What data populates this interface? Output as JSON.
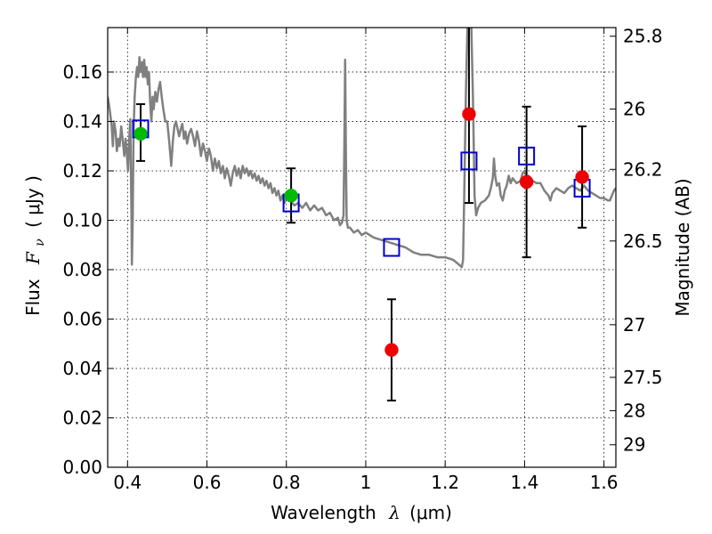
{
  "chart_data": {
    "type": "scatter",
    "title": "",
    "xlabel": "Wavelength",
    "xlabel_symbol": "λ",
    "xlabel_unit": "(μm)",
    "ylabel": "Flux",
    "ylabel_symbol": "F",
    "ylabel_subscript": "ν",
    "ylabel_unit": "( μJy )",
    "y2label": "Magnitude (AB)",
    "xlim": [
      0.35,
      1.63
    ],
    "ylim": [
      0.0,
      0.178
    ],
    "grid": true,
    "legend": "none",
    "x_ticks": [
      {
        "value": 0.4,
        "label": "0.4"
      },
      {
        "value": 0.6,
        "label": "0.6"
      },
      {
        "value": 0.8,
        "label": "0.8"
      },
      {
        "value": 1.0,
        "label": "1"
      },
      {
        "value": 1.2,
        "label": "1.2"
      },
      {
        "value": 1.4,
        "label": "1.4"
      },
      {
        "value": 1.6,
        "label": "1.6"
      }
    ],
    "y_ticks": [
      {
        "value": 0.0,
        "label": "0.00"
      },
      {
        "value": 0.02,
        "label": "0.02"
      },
      {
        "value": 0.04,
        "label": "0.04"
      },
      {
        "value": 0.06,
        "label": "0.06"
      },
      {
        "value": 0.08,
        "label": "0.08"
      },
      {
        "value": 0.1,
        "label": "0.10"
      },
      {
        "value": 0.12,
        "label": "0.12"
      },
      {
        "value": 0.14,
        "label": "0.14"
      },
      {
        "value": 0.16,
        "label": "0.16"
      }
    ],
    "y2_ticks": [
      {
        "label": "25.8",
        "flux": 0.1745
      },
      {
        "label": "26",
        "flux": 0.145
      },
      {
        "label": "26.2",
        "flux": 0.1206
      },
      {
        "label": "26.5",
        "flux": 0.0916
      },
      {
        "label": "27",
        "flux": 0.0577
      },
      {
        "label": "27.5",
        "flux": 0.0364
      },
      {
        "label": "28",
        "flux": 0.0229
      },
      {
        "label": "29",
        "flux": 0.0091
      }
    ],
    "series": [
      {
        "kind": "line",
        "color": "#808080",
        "points": [
          [
            0.35,
            0.15
          ],
          [
            0.355,
            0.145
          ],
          [
            0.36,
            0.138
          ],
          [
            0.363,
            0.13
          ],
          [
            0.366,
            0.14
          ],
          [
            0.37,
            0.136
          ],
          [
            0.373,
            0.128
          ],
          [
            0.377,
            0.133
          ],
          [
            0.38,
            0.13
          ],
          [
            0.384,
            0.138
          ],
          [
            0.388,
            0.132
          ],
          [
            0.392,
            0.126
          ],
          [
            0.395,
            0.133
          ],
          [
            0.398,
            0.128
          ],
          [
            0.401,
            0.12
          ],
          [
            0.404,
            0.132
          ],
          [
            0.407,
            0.141
          ],
          [
            0.408,
            0.125
          ],
          [
            0.41,
            0.1
          ],
          [
            0.411,
            0.082
          ],
          [
            0.413,
            0.1
          ],
          [
            0.415,
            0.135
          ],
          [
            0.418,
            0.15
          ],
          [
            0.421,
            0.158
          ],
          [
            0.424,
            0.162
          ],
          [
            0.427,
            0.158
          ],
          [
            0.43,
            0.166
          ],
          [
            0.433,
            0.16
          ],
          [
            0.436,
            0.164
          ],
          [
            0.439,
            0.158
          ],
          [
            0.442,
            0.165
          ],
          [
            0.445,
            0.158
          ],
          [
            0.448,
            0.162
          ],
          [
            0.451,
            0.155
          ],
          [
            0.454,
            0.16
          ],
          [
            0.457,
            0.148
          ],
          [
            0.46,
            0.14
          ],
          [
            0.463,
            0.15
          ],
          [
            0.466,
            0.145
          ],
          [
            0.47,
            0.152
          ],
          [
            0.474,
            0.148
          ],
          [
            0.478,
            0.153
          ],
          [
            0.482,
            0.156
          ],
          [
            0.486,
            0.15
          ],
          [
            0.49,
            0.145
          ],
          [
            0.495,
            0.14
          ],
          [
            0.5,
            0.14
          ],
          [
            0.505,
            0.132
          ],
          [
            0.51,
            0.122
          ],
          [
            0.514,
            0.132
          ],
          [
            0.518,
            0.138
          ],
          [
            0.522,
            0.14
          ],
          [
            0.526,
            0.137
          ],
          [
            0.53,
            0.134
          ],
          [
            0.534,
            0.137
          ],
          [
            0.538,
            0.139
          ],
          [
            0.542,
            0.133
          ],
          [
            0.546,
            0.136
          ],
          [
            0.55,
            0.131
          ],
          [
            0.555,
            0.135
          ],
          [
            0.56,
            0.137
          ],
          [
            0.565,
            0.134
          ],
          [
            0.57,
            0.13
          ],
          [
            0.575,
            0.136
          ],
          [
            0.58,
            0.132
          ],
          [
            0.585,
            0.126
          ],
          [
            0.59,
            0.131
          ],
          [
            0.595,
            0.128
          ],
          [
            0.6,
            0.124
          ],
          [
            0.605,
            0.129
          ],
          [
            0.61,
            0.126
          ],
          [
            0.615,
            0.12
          ],
          [
            0.62,
            0.125
          ],
          [
            0.625,
            0.121
          ],
          [
            0.63,
            0.124
          ],
          [
            0.635,
            0.119
          ],
          [
            0.64,
            0.122
          ],
          [
            0.645,
            0.117
          ],
          [
            0.65,
            0.121
          ],
          [
            0.655,
            0.118
          ],
          [
            0.66,
            0.114
          ],
          [
            0.665,
            0.119
          ],
          [
            0.67,
            0.122
          ],
          [
            0.675,
            0.118
          ],
          [
            0.68,
            0.121
          ],
          [
            0.685,
            0.117
          ],
          [
            0.69,
            0.122
          ],
          [
            0.695,
            0.119
          ],
          [
            0.7,
            0.121
          ],
          [
            0.705,
            0.118
          ],
          [
            0.71,
            0.12
          ],
          [
            0.715,
            0.117
          ],
          [
            0.72,
            0.119
          ],
          [
            0.725,
            0.116
          ],
          [
            0.73,
            0.118
          ],
          [
            0.735,
            0.115
          ],
          [
            0.74,
            0.117
          ],
          [
            0.745,
            0.114
          ],
          [
            0.75,
            0.116
          ],
          [
            0.755,
            0.113
          ],
          [
            0.76,
            0.115
          ],
          [
            0.765,
            0.111
          ],
          [
            0.77,
            0.113
          ],
          [
            0.775,
            0.11
          ],
          [
            0.78,
            0.112
          ],
          [
            0.785,
            0.108
          ],
          [
            0.79,
            0.11
          ],
          [
            0.795,
            0.107
          ],
          [
            0.8,
            0.109
          ],
          [
            0.81,
            0.108
          ],
          [
            0.82,
            0.106
          ],
          [
            0.83,
            0.107
          ],
          [
            0.84,
            0.105
          ],
          [
            0.85,
            0.107
          ],
          [
            0.86,
            0.104
          ],
          [
            0.87,
            0.106
          ],
          [
            0.88,
            0.104
          ],
          [
            0.89,
            0.105
          ],
          [
            0.9,
            0.102
          ],
          [
            0.91,
            0.103
          ],
          [
            0.92,
            0.1
          ],
          [
            0.93,
            0.101
          ],
          [
            0.935,
            0.098
          ],
          [
            0.94,
            0.099
          ],
          [
            0.944,
            0.102
          ],
          [
            0.946,
            0.13
          ],
          [
            0.948,
            0.165
          ],
          [
            0.95,
            0.125
          ],
          [
            0.952,
            0.1
          ],
          [
            0.955,
            0.097
          ],
          [
            0.96,
            0.097
          ],
          [
            0.97,
            0.095
          ],
          [
            0.98,
            0.096
          ],
          [
            0.99,
            0.094
          ],
          [
            1.0,
            0.095
          ],
          [
            1.02,
            0.093
          ],
          [
            1.04,
            0.092
          ],
          [
            1.06,
            0.091
          ],
          [
            1.08,
            0.09
          ],
          [
            1.1,
            0.089
          ],
          [
            1.12,
            0.087
          ],
          [
            1.14,
            0.086
          ],
          [
            1.16,
            0.086
          ],
          [
            1.18,
            0.085
          ],
          [
            1.2,
            0.085
          ],
          [
            1.22,
            0.084
          ],
          [
            1.235,
            0.082
          ],
          [
            1.242,
            0.081
          ],
          [
            1.245,
            0.084
          ],
          [
            1.248,
            0.11
          ],
          [
            1.252,
            0.15
          ],
          [
            1.256,
            0.178
          ],
          [
            1.262,
            0.178
          ],
          [
            1.266,
            0.178
          ],
          [
            1.27,
            0.15
          ],
          [
            1.274,
            0.11
          ],
          [
            1.278,
            0.102
          ],
          [
            1.283,
            0.105
          ],
          [
            1.29,
            0.107
          ],
          [
            1.3,
            0.108
          ],
          [
            1.31,
            0.11
          ],
          [
            1.315,
            0.113
          ],
          [
            1.32,
            0.117
          ],
          [
            1.323,
            0.125
          ],
          [
            1.326,
            0.118
          ],
          [
            1.33,
            0.114
          ],
          [
            1.336,
            0.115
          ],
          [
            1.34,
            0.11
          ],
          [
            1.345,
            0.108
          ],
          [
            1.35,
            0.112
          ],
          [
            1.355,
            0.114
          ],
          [
            1.36,
            0.118
          ],
          [
            1.365,
            0.115
          ],
          [
            1.37,
            0.117
          ],
          [
            1.38,
            0.115
          ],
          [
            1.39,
            0.116
          ],
          [
            1.395,
            0.119
          ],
          [
            1.4,
            0.12
          ],
          [
            1.405,
            0.117
          ],
          [
            1.41,
            0.118
          ],
          [
            1.42,
            0.116
          ],
          [
            1.43,
            0.115
          ],
          [
            1.44,
            0.115
          ],
          [
            1.45,
            0.112
          ],
          [
            1.46,
            0.11
          ],
          [
            1.465,
            0.108
          ],
          [
            1.47,
            0.111
          ],
          [
            1.48,
            0.113
          ],
          [
            1.49,
            0.112
          ],
          [
            1.5,
            0.111
          ],
          [
            1.51,
            0.113
          ],
          [
            1.52,
            0.114
          ],
          [
            1.53,
            0.113
          ],
          [
            1.54,
            0.112
          ],
          [
            1.55,
            0.114
          ],
          [
            1.56,
            0.112
          ],
          [
            1.57,
            0.111
          ],
          [
            1.58,
            0.11
          ],
          [
            1.59,
            0.109
          ],
          [
            1.6,
            0.109
          ],
          [
            1.61,
            0.108
          ],
          [
            1.615,
            0.108
          ],
          [
            1.62,
            0.11
          ],
          [
            1.625,
            0.112
          ],
          [
            1.63,
            0.113
          ]
        ]
      },
      {
        "kind": "markers",
        "marker": "square",
        "color": "#0000cc",
        "points": [
          {
            "x": 0.433,
            "y": 0.137
          },
          {
            "x": 0.812,
            "y": 0.107
          },
          {
            "x": 1.065,
            "y": 0.089
          },
          {
            "x": 1.26,
            "y": 0.124
          },
          {
            "x": 1.405,
            "y": 0.126
          },
          {
            "x": 1.545,
            "y": 0.113
          }
        ]
      },
      {
        "kind": "errorbar",
        "color": "#000000",
        "points": [
          {
            "x": 0.433,
            "y": 0.135,
            "ylow": 0.124,
            "yhigh": 0.147
          },
          {
            "x": 0.812,
            "y": 0.11,
            "ylow": 0.099,
            "yhigh": 0.121
          },
          {
            "x": 1.065,
            "y": 0.0475,
            "ylow": 0.027,
            "yhigh": 0.068
          },
          {
            "x": 1.26,
            "y": 0.143,
            "ylow": 0.107,
            "yhigh": 0.178
          },
          {
            "x": 1.405,
            "y": 0.1155,
            "ylow": 0.085,
            "yhigh": 0.146
          },
          {
            "x": 1.545,
            "y": 0.1175,
            "ylow": 0.097,
            "yhigh": 0.138
          }
        ]
      },
      {
        "kind": "markers",
        "marker": "circle",
        "points": [
          {
            "x": 0.433,
            "y": 0.135,
            "color": "#00bb00"
          },
          {
            "x": 0.812,
            "y": 0.11,
            "color": "#00bb00"
          },
          {
            "x": 1.065,
            "y": 0.0475,
            "color": "#ee0000"
          },
          {
            "x": 1.26,
            "y": 0.143,
            "color": "#ee0000"
          },
          {
            "x": 1.405,
            "y": 0.1155,
            "color": "#ee0000"
          },
          {
            "x": 1.545,
            "y": 0.1175,
            "color": "#ee0000"
          }
        ]
      }
    ]
  }
}
